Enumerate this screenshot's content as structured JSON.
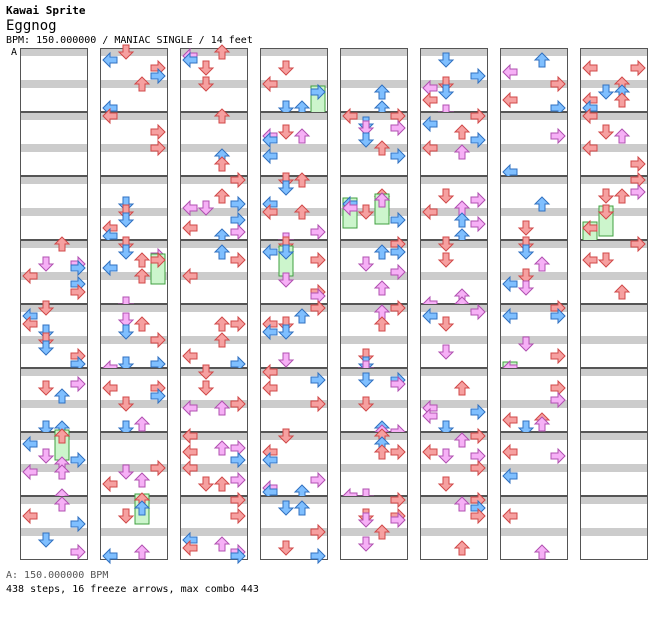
{
  "header": {
    "artist": "Kawai Sprite",
    "title": "Eggnog",
    "meta": "BPM: 150.000000 / MANIAC SINGLE / 14 feet",
    "bpm_marker": "A"
  },
  "footer": {
    "bpm_line": "A: 150.000000 BPM",
    "stats_line": "438 steps, 16 freeze arrows, max combo 443"
  },
  "colors": {
    "left": "#f6a0a0",
    "down": "#7fbfff",
    "up": "#7fbfff",
    "right": "#f6a0a0",
    "quarter_outline": "#d04848",
    "eighth_outline": "#3070c0",
    "sixteenth_fill": "#f6b0f6",
    "sixteenth_outline": "#b050b0",
    "freeze_fill": "#ccf5cc",
    "freeze_outline": "#40a040",
    "stripe": "#cccccc"
  },
  "layout_notes": {
    "columns": 8,
    "measures_per_column": 8
  }
}
